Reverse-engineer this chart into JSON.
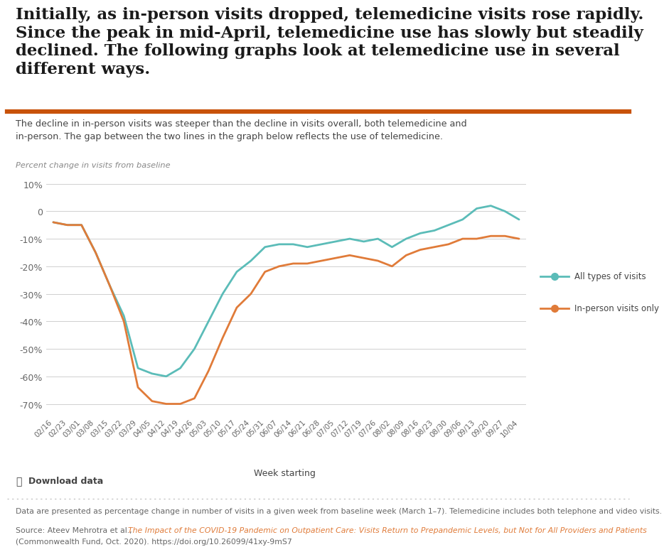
{
  "title_text": "Initially, as in-person visits dropped, telemedicine visits rose rapidly.\nSince the peak in mid-April, telemedicine use has slowly but steadily\ndeclined. The following graphs look at telemedicine use in several\ndifferent ways.",
  "subtitle_text": "The decline in in-person visits was steeper than the decline in visits overall, both telemedicine and\nin-person. The gap between the two lines in the graph below reflects the use of telemedicine.",
  "y_axis_label": "Percent change in visits from baseline",
  "x_axis_label": "Week starting",
  "legend_teal": "All types of visits",
  "legend_orange": "In-person visits only",
  "download_text": "Download data",
  "footer_note": "Data are presented as percentage change in number of visits in a given week from baseline week (March 1–7). Telemedicine includes both telephone and video visits.",
  "source_normal": "Source: Ateev Mehrotra et al., ",
  "source_italic": "The Impact of the COVID-19 Pandemic on Outpatient Care: Visits Return to Prepandemic Levels, but Not for All Providers and Patients",
  "source_end": "(Commonwealth Fund, Oct. 2020). https://doi.org/10.26099/41xy-9mS7",
  "x_labels": [
    "02/16",
    "02/23",
    "03/01",
    "03/08",
    "03/15",
    "03/22",
    "03/29",
    "04/05",
    "04/12",
    "04/19",
    "04/26",
    "05/03",
    "05/10",
    "05/17",
    "05/24",
    "05/31",
    "06/07",
    "06/14",
    "06/21",
    "06/28",
    "07/05",
    "07/12",
    "07/19",
    "07/26",
    "08/02",
    "08/09",
    "08/16",
    "08/23",
    "08/30",
    "09/06",
    "09/13",
    "09/20",
    "09/27",
    "10/04"
  ],
  "all_visits": [
    -4,
    -5,
    -5,
    -15,
    -27,
    -38,
    -57,
    -59,
    -60,
    -57,
    -50,
    -40,
    -30,
    -22,
    -18,
    -13,
    -12,
    -12,
    -13,
    -12,
    -11,
    -10,
    -11,
    -10,
    -13,
    -10,
    -8,
    -7,
    -5,
    -3,
    1,
    2,
    0,
    -3
  ],
  "inperson_visits": [
    -4,
    -5,
    -5,
    -15,
    -27,
    -40,
    -64,
    -69,
    -70,
    -70,
    -68,
    -58,
    -46,
    -35,
    -30,
    -22,
    -20,
    -19,
    -19,
    -18,
    -17,
    -16,
    -17,
    -18,
    -20,
    -16,
    -14,
    -13,
    -12,
    -10,
    -10,
    -9,
    -9,
    -10
  ],
  "yticks": [
    10,
    0,
    -10,
    -20,
    -30,
    -40,
    -50,
    -60,
    -70
  ],
  "ylim_min": -74,
  "ylim_max": 13,
  "teal_color": "#5bbcb8",
  "orange_color": "#e07b39",
  "separator_color": "#c8520a",
  "grid_color": "#d0d0d0",
  "title_color": "#1a1a1a",
  "body_color": "#444444",
  "footer_color": "#666666",
  "axis_label_color": "#888888",
  "tick_color": "#666666",
  "link_color": "#e07b39"
}
